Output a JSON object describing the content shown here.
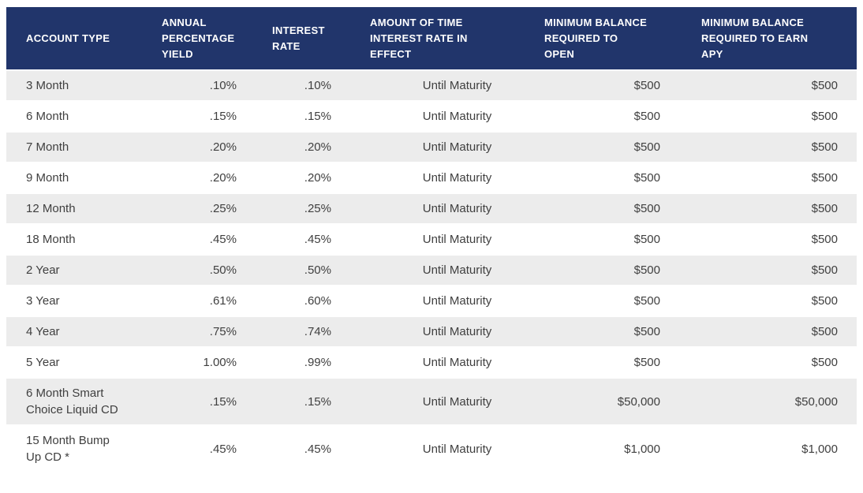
{
  "colors": {
    "header_bg": "#21356b",
    "header_text": "#ffffff",
    "stripe_bg": "#ececec",
    "body_text": "#3f3f3f",
    "page_bg": "#ffffff"
  },
  "table": {
    "columns": [
      {
        "label": "ACCOUNT TYPE"
      },
      {
        "label": "ANNUAL PERCENTAGE YIELD"
      },
      {
        "label": "INTEREST RATE"
      },
      {
        "label": "AMOUNT OF TIME INTEREST RATE IN EFFECT"
      },
      {
        "label": "MINIMUM BALANCE REQUIRED TO OPEN"
      },
      {
        "label": "MINIMUM BALANCE REQUIRED TO EARN APY"
      }
    ],
    "rows": [
      {
        "account_type": "3 Month",
        "apy": ".10%",
        "interest_rate": ".10%",
        "time_in_effect": "Until Maturity",
        "min_open": "$500",
        "min_apy": "$500"
      },
      {
        "account_type": "6 Month",
        "apy": ".15%",
        "interest_rate": ".15%",
        "time_in_effect": "Until Maturity",
        "min_open": "$500",
        "min_apy": "$500"
      },
      {
        "account_type": "7 Month",
        "apy": ".20%",
        "interest_rate": ".20%",
        "time_in_effect": "Until Maturity",
        "min_open": "$500",
        "min_apy": "$500"
      },
      {
        "account_type": "9 Month",
        "apy": ".20%",
        "interest_rate": ".20%",
        "time_in_effect": "Until Maturity",
        "min_open": "$500",
        "min_apy": "$500"
      },
      {
        "account_type": "12 Month",
        "apy": ".25%",
        "interest_rate": ".25%",
        "time_in_effect": "Until Maturity",
        "min_open": "$500",
        "min_apy": "$500"
      },
      {
        "account_type": "18 Month",
        "apy": ".45%",
        "interest_rate": ".45%",
        "time_in_effect": "Until Maturity",
        "min_open": "$500",
        "min_apy": "$500"
      },
      {
        "account_type": "2 Year",
        "apy": ".50%",
        "interest_rate": ".50%",
        "time_in_effect": "Until Maturity",
        "min_open": "$500",
        "min_apy": "$500"
      },
      {
        "account_type": "3 Year",
        "apy": ".61%",
        "interest_rate": ".60%",
        "time_in_effect": "Until Maturity",
        "min_open": "$500",
        "min_apy": "$500"
      },
      {
        "account_type": "4 Year",
        "apy": ".75%",
        "interest_rate": ".74%",
        "time_in_effect": "Until Maturity",
        "min_open": "$500",
        "min_apy": "$500"
      },
      {
        "account_type": "5 Year",
        "apy": "1.00%",
        "interest_rate": ".99%",
        "time_in_effect": "Until Maturity",
        "min_open": "$500",
        "min_apy": "$500"
      },
      {
        "account_type": "6 Month Smart\nChoice Liquid CD",
        "apy": ".15%",
        "interest_rate": ".15%",
        "time_in_effect": "Until Maturity",
        "min_open": "$50,000",
        "min_apy": "$50,000"
      },
      {
        "account_type": "15 Month Bump\nUp CD *",
        "apy": ".45%",
        "interest_rate": ".45%",
        "time_in_effect": "Until Maturity",
        "min_open": "$1,000",
        "min_apy": "$1,000"
      }
    ]
  }
}
